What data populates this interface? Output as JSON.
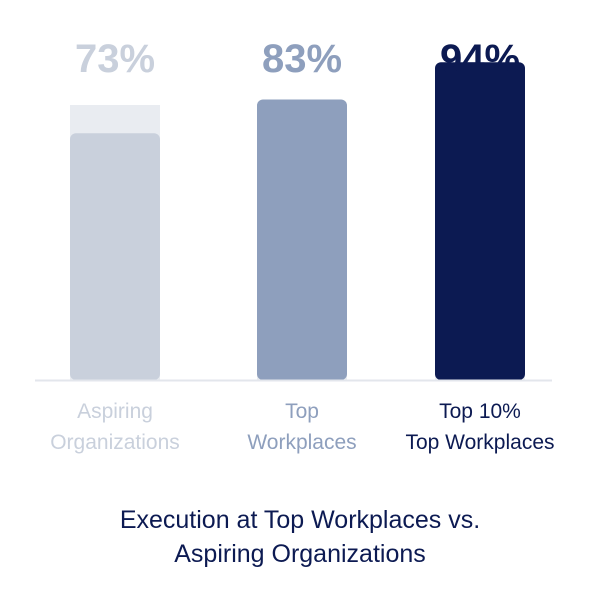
{
  "chart_data": {
    "type": "bar",
    "title": [
      "Execution at Top Workplaces vs.",
      "Aspiring Organizations"
    ],
    "categories": [
      [
        "Aspiring",
        "Organizations"
      ],
      [
        "Top",
        "Workplaces"
      ],
      [
        "Top 10%",
        "Top Workplaces"
      ]
    ],
    "values": [
      73,
      83,
      94
    ],
    "value_labels": [
      "73%",
      "83%",
      "94%"
    ],
    "ylim": [
      0,
      100
    ],
    "grid": false,
    "legend": "none"
  },
  "colors": {
    "bars": [
      "#c9d0dc",
      "#8e9fbd",
      "#0c1a52"
    ],
    "value_labels": [
      "#c9d0dc",
      "#8e9fbd",
      "#0c1a52"
    ],
    "category_labels": [
      "#c9d0dc",
      "#8e9fbd",
      "#0c1a52"
    ],
    "track": "#e9ecf1",
    "baseline": "#e3e6ec",
    "title": "#0c1a52"
  }
}
